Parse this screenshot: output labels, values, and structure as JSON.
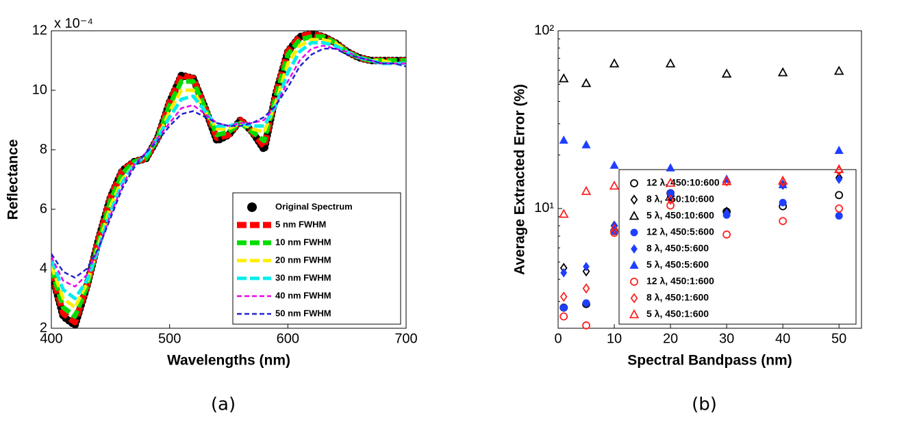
{
  "chart_data": [
    {
      "type": "line",
      "caption": "(a)",
      "xlabel": "Wavelengths (nm)",
      "ylabel": "Reflectance",
      "y_multiplier": "x 10⁻⁴",
      "x": [
        400,
        410,
        420,
        430,
        440,
        450,
        460,
        470,
        480,
        490,
        500,
        510,
        520,
        530,
        540,
        550,
        560,
        570,
        580,
        590,
        600,
        610,
        620,
        630,
        640,
        650,
        660,
        670,
        680,
        690,
        700
      ],
      "xlim": [
        400,
        700
      ],
      "xticks": [
        400,
        500,
        600,
        700
      ],
      "ylim": [
        2,
        12
      ],
      "yticks": [
        2,
        4,
        6,
        8,
        10,
        12
      ],
      "legend": "lower right",
      "series": [
        {
          "name": "Original Spectrum",
          "color": "#000000",
          "style": "dots",
          "values": [
            3.9,
            2.4,
            2.1,
            3.4,
            5.0,
            6.4,
            7.3,
            7.6,
            7.7,
            8.4,
            9.6,
            10.5,
            10.4,
            9.4,
            8.3,
            8.5,
            9.0,
            8.6,
            8.0,
            9.9,
            11.3,
            11.8,
            11.9,
            11.8,
            11.6,
            11.3,
            11.1,
            11.0,
            11.0,
            11.0,
            11.0
          ]
        },
        {
          "name": "5 nm FWHM",
          "color": "#ff0000",
          "style": "dashed",
          "values": [
            3.9,
            2.5,
            2.2,
            3.4,
            5.0,
            6.4,
            7.3,
            7.6,
            7.7,
            8.4,
            9.6,
            10.5,
            10.4,
            9.4,
            8.4,
            8.5,
            9.0,
            8.6,
            8.1,
            9.9,
            11.3,
            11.8,
            11.9,
            11.8,
            11.6,
            11.3,
            11.1,
            11.0,
            11.0,
            11.0,
            11.0
          ]
        },
        {
          "name": "10 nm FWHM",
          "color": "#00dd00",
          "style": "dashed",
          "values": [
            4.0,
            2.7,
            2.4,
            3.4,
            4.9,
            6.3,
            7.2,
            7.6,
            7.7,
            8.4,
            9.5,
            10.3,
            10.3,
            9.4,
            8.5,
            8.6,
            8.9,
            8.6,
            8.3,
            9.8,
            11.2,
            11.7,
            11.8,
            11.8,
            11.6,
            11.3,
            11.1,
            11.0,
            11.0,
            11.0,
            11.0
          ]
        },
        {
          "name": "20 nm FWHM",
          "color": "#ffee00",
          "style": "dashed",
          "values": [
            4.1,
            3.0,
            2.7,
            3.5,
            4.8,
            6.1,
            7.0,
            7.5,
            7.8,
            8.4,
            9.3,
            10.0,
            10.0,
            9.3,
            8.7,
            8.7,
            8.9,
            8.7,
            8.6,
            9.6,
            10.9,
            11.5,
            11.7,
            11.7,
            11.6,
            11.3,
            11.1,
            11.0,
            11.0,
            10.9,
            10.9
          ]
        },
        {
          "name": "30 nm FWHM",
          "color": "#00eeee",
          "style": "dashed",
          "values": [
            4.3,
            3.3,
            3.0,
            3.6,
            4.7,
            5.9,
            6.9,
            7.5,
            7.8,
            8.4,
            9.1,
            9.7,
            9.8,
            9.3,
            8.8,
            8.8,
            8.9,
            8.8,
            8.8,
            9.5,
            10.6,
            11.3,
            11.6,
            11.6,
            11.5,
            11.3,
            11.1,
            11.0,
            10.9,
            10.9,
            10.9
          ]
        },
        {
          "name": "40 nm FWHM",
          "color": "#ee00ee",
          "style": "thin",
          "values": [
            4.4,
            3.6,
            3.4,
            3.8,
            4.7,
            5.8,
            6.8,
            7.5,
            7.9,
            8.4,
            8.9,
            9.4,
            9.5,
            9.2,
            8.9,
            8.8,
            8.9,
            8.9,
            9.0,
            9.5,
            10.3,
            11.0,
            11.4,
            11.5,
            11.4,
            11.3,
            11.1,
            11.0,
            10.9,
            10.9,
            10.9
          ]
        },
        {
          "name": "50 nm FWHM",
          "color": "#2222cc",
          "style": "thin",
          "values": [
            4.5,
            3.9,
            3.7,
            4.0,
            4.7,
            5.7,
            6.7,
            7.4,
            7.9,
            8.3,
            8.8,
            9.2,
            9.3,
            9.1,
            8.9,
            8.8,
            8.8,
            8.9,
            9.1,
            9.5,
            10.1,
            10.8,
            11.2,
            11.4,
            11.4,
            11.2,
            11.1,
            11.0,
            10.9,
            10.9,
            10.8
          ]
        }
      ]
    },
    {
      "type": "scatter",
      "caption": "(b)",
      "xlabel": "Spectral Bandpass (nm)",
      "ylabel": "Average Extracted Error (%)",
      "x": [
        1,
        5,
        10,
        20,
        30,
        40,
        50
      ],
      "xlim": [
        0,
        54
      ],
      "xticks": [
        0,
        10,
        20,
        30,
        40,
        50
      ],
      "ylim": [
        2.12,
        100
      ],
      "ylog": true,
      "yticks": [
        {
          "value": 10,
          "label": "10¹"
        },
        {
          "value": 100,
          "label": "10²"
        }
      ],
      "legend": "lower right",
      "series": [
        {
          "name": "12 λ, 450:10:600",
          "color": "#000000",
          "marker": "circle-open",
          "values": [
            2.77,
            2.9,
            7.47,
            12.2,
            9.6,
            10.3,
            11.9
          ]
        },
        {
          "name": "8 λ, 450:10:600",
          "color": "#000000",
          "marker": "diamond-open",
          "values": [
            4.63,
            4.43,
            8.0,
            11.7,
            9.6,
            13.6,
            14.9
          ]
        },
        {
          "name": "5 λ, 450:10:600",
          "color": "#000000",
          "marker": "triangle-open",
          "values": [
            53.8,
            50.6,
            65.3,
            65.3,
            57.2,
            58.2,
            59.3
          ]
        },
        {
          "name": "12 λ, 450:5:600",
          "color": "#1f3fff",
          "marker": "circle",
          "values": [
            2.77,
            2.94,
            7.47,
            12.2,
            9.2,
            10.8,
            9.1
          ]
        },
        {
          "name": "8 λ, 450:5:600",
          "color": "#1f3fff",
          "marker": "diamond",
          "values": [
            4.35,
            4.71,
            8.0,
            11.9,
            9.4,
            13.6,
            14.6
          ]
        },
        {
          "name": "5 λ, 450:5:600",
          "color": "#1f3fff",
          "marker": "triangle",
          "values": [
            24.2,
            22.8,
            17.5,
            16.9,
            14.6,
            13.6,
            21.2
          ]
        },
        {
          "name": "12 λ, 450:1:600",
          "color": "#ff2020",
          "marker": "circle-open",
          "values": [
            2.47,
            2.2,
            7.3,
            10.4,
            7.14,
            8.5,
            10.0
          ]
        },
        {
          "name": "8 λ, 450:1:600",
          "color": "#ff2020",
          "marker": "diamond-open",
          "values": [
            3.19,
            3.55,
            7.66,
            11.2,
            14.2,
            14.1,
            16.3
          ]
        },
        {
          "name": "5 λ, 450:1:600",
          "color": "#ff2020",
          "marker": "triangle-open",
          "values": [
            9.3,
            12.5,
            13.4,
            13.9,
            14.2,
            14.3,
            16.6
          ]
        }
      ]
    }
  ]
}
